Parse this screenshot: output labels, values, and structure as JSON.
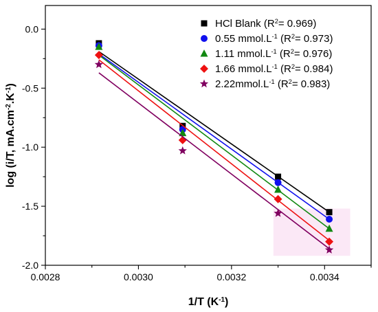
{
  "chart_data": {
    "type": "scatter",
    "xlabel": "1/T (K",
    "xlabel_sup": "-1",
    "xlabel_end": ")",
    "ylabel_parts": [
      {
        "text": "log (i/T, mA.cm",
        "sup": false
      },
      {
        "text": "-2",
        "sup": true
      },
      {
        "text": ".K",
        "sup": false
      },
      {
        "text": "-1",
        "sup": true
      },
      {
        "text": ")",
        "sup": false
      }
    ],
    "xlim": [
      0.0028,
      0.0035
    ],
    "ylim": [
      -2.0,
      0.2
    ],
    "xticks": [
      0.0028,
      0.003,
      0.0032,
      0.0034
    ],
    "xtick_labels": [
      "0.0028",
      "0.0030",
      "0.0032",
      "0.0034"
    ],
    "yticks": [
      -2.0,
      -1.5,
      -1.0,
      -0.5,
      0.0
    ],
    "ytick_labels": [
      "-2.0",
      "-1.5",
      "-1.0",
      "-0.5",
      "0.0"
    ],
    "legend_position": "top-right",
    "x": [
      0.002915,
      0.003095,
      0.0033,
      0.00341
    ],
    "series": [
      {
        "name": "HCl Blank",
        "legend_parts": [
          {
            "text": "HCl Blank (R",
            "sup": false
          },
          {
            "text": "2",
            "sup": true
          },
          {
            "text": "= 0.969)",
            "sup": false
          }
        ],
        "marker": "square",
        "color": "#000000",
        "values": [
          -0.12,
          -0.82,
          -1.25,
          -1.55
        ],
        "fit": [
          -0.19,
          -1.55
        ]
      },
      {
        "name": "0.55 mmol.L-1",
        "legend_parts": [
          {
            "text": "0.55 mmol.L",
            "sup": false
          },
          {
            "text": "-1",
            "sup": true
          },
          {
            "text": " (R",
            "sup": false
          },
          {
            "text": "2",
            "sup": true
          },
          {
            "text": "= 0.973)",
            "sup": false
          }
        ],
        "marker": "circle",
        "color": "#1010ee",
        "values": [
          -0.14,
          -0.85,
          -1.3,
          -1.61
        ],
        "fit": [
          -0.21,
          -1.61
        ]
      },
      {
        "name": "1.11 mmol.L-1",
        "legend_parts": [
          {
            "text": "1.11 mmol.L",
            "sup": false
          },
          {
            "text": "-1",
            "sup": true
          },
          {
            "text": " (R",
            "sup": false
          },
          {
            "text": "2",
            "sup": true
          },
          {
            "text": "= 0.976)",
            "sup": false
          }
        ],
        "marker": "triangle",
        "color": "#118811",
        "values": [
          -0.15,
          -0.88,
          -1.36,
          -1.69
        ],
        "fit": [
          -0.22,
          -1.69
        ]
      },
      {
        "name": "1.66 mmol.L-1",
        "legend_parts": [
          {
            "text": "1.66 mmol.L",
            "sup": false
          },
          {
            "text": "-1",
            "sup": true
          },
          {
            "text": " (R",
            "sup": false
          },
          {
            "text": "2",
            "sup": true
          },
          {
            "text": "= 0.984)",
            "sup": false
          }
        ],
        "marker": "diamond",
        "color": "#ee1111",
        "values": [
          -0.22,
          -0.94,
          -1.44,
          -1.8
        ],
        "fit": [
          -0.26,
          -1.79
        ]
      },
      {
        "name": "2.22mmol.L-1",
        "legend_parts": [
          {
            "text": "2.22mmol.L",
            "sup": false
          },
          {
            "text": "-1",
            "sup": true
          },
          {
            "text": " (R",
            "sup": false
          },
          {
            "text": "2",
            "sup": true
          },
          {
            "text": "= 0.983)",
            "sup": false
          }
        ],
        "marker": "star",
        "color": "#800060",
        "values": [
          -0.3,
          -1.03,
          -1.56,
          -1.87
        ],
        "fit": [
          -0.37,
          -1.86
        ]
      }
    ]
  }
}
